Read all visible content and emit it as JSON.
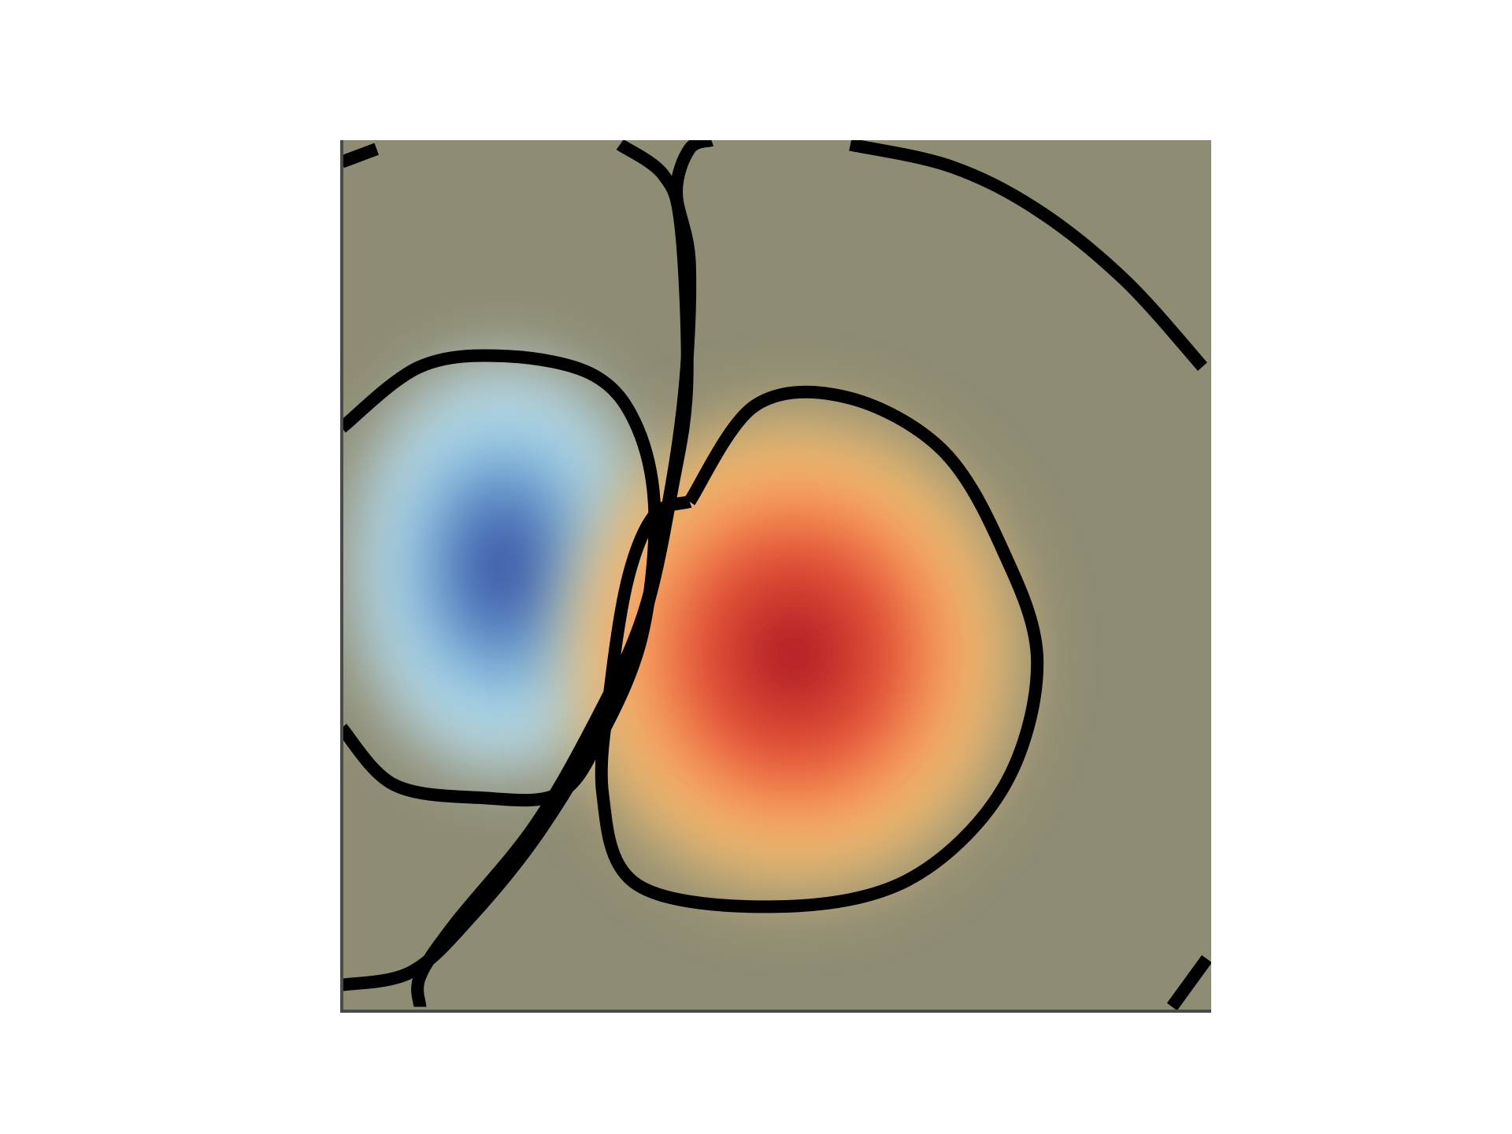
{
  "chart_data": {
    "type": "heatmap",
    "title": "",
    "xlabel": "",
    "ylabel": "",
    "xlim": [
      0,
      1
    ],
    "ylim": [
      0,
      1
    ],
    "grid": false,
    "legend": "none",
    "colormap": "RdYlBu_r",
    "background_color": "#8e8c73",
    "frame_color": "#4a4a4a",
    "contour_color": "#000000",
    "extrema": [
      {
        "name": "negative-lobe",
        "x": 0.185,
        "y": 0.51,
        "value": -1.0,
        "color": "#3a4a9e"
      },
      {
        "name": "positive-lobe",
        "x": 0.52,
        "y": 0.41,
        "value": 1.0,
        "color": "#a8102a"
      }
    ],
    "contours": [
      {
        "name": "negative-lobe-boundary",
        "points": [
          [
            0.0,
            0.67
          ],
          [
            0.09,
            0.74
          ],
          [
            0.19,
            0.752
          ],
          [
            0.29,
            0.73
          ],
          [
            0.34,
            0.67
          ],
          [
            0.36,
            0.57
          ],
          [
            0.345,
            0.43
          ],
          [
            0.3,
            0.32
          ],
          [
            0.25,
            0.25
          ],
          [
            0.16,
            0.245
          ],
          [
            0.06,
            0.26
          ],
          [
            0.0,
            0.325
          ]
        ]
      },
      {
        "name": "positive-lobe-boundary",
        "points": [
          [
            0.4,
            0.585
          ],
          [
            0.475,
            0.695
          ],
          [
            0.58,
            0.705
          ],
          [
            0.69,
            0.645
          ],
          [
            0.76,
            0.53
          ],
          [
            0.8,
            0.4
          ],
          [
            0.76,
            0.255
          ],
          [
            0.65,
            0.15
          ],
          [
            0.5,
            0.12
          ],
          [
            0.34,
            0.145
          ],
          [
            0.3,
            0.25
          ],
          [
            0.31,
            0.38
          ],
          [
            0.33,
            0.5
          ],
          [
            0.36,
            0.57
          ],
          [
            0.4,
            0.585
          ]
        ]
      },
      {
        "name": "center-separatrix-upper",
        "points": [
          [
            0.425,
            1.0
          ],
          [
            0.4,
            0.99
          ],
          [
            0.385,
            0.94
          ],
          [
            0.4,
            0.86
          ],
          [
            0.395,
            0.72
          ],
          [
            0.375,
            0.58
          ],
          [
            0.345,
            0.45
          ],
          [
            0.29,
            0.33
          ],
          [
            0.22,
            0.21
          ],
          [
            0.13,
            0.1
          ],
          [
            0.09,
            0.04
          ],
          [
            0.09,
            0.005
          ]
        ]
      },
      {
        "name": "center-separatrix-lower",
        "points": [
          [
            0.32,
            0.995
          ],
          [
            0.37,
            0.96
          ],
          [
            0.39,
            0.9
          ],
          [
            0.397,
            0.72
          ],
          [
            0.38,
            0.6
          ],
          [
            0.35,
            0.46
          ],
          [
            0.3,
            0.33
          ],
          [
            0.23,
            0.21
          ],
          [
            0.15,
            0.11
          ],
          [
            0.08,
            0.045
          ],
          [
            0.0,
            0.03
          ]
        ]
      },
      {
        "name": "upper-left-fragment",
        "points": [
          [
            0.0,
            0.975
          ],
          [
            0.04,
            0.99
          ]
        ]
      },
      {
        "name": "outer-arc-upper-right",
        "points": [
          [
            0.585,
            0.995
          ],
          [
            0.7,
            0.97
          ],
          [
            0.8,
            0.92
          ],
          [
            0.9,
            0.84
          ],
          [
            0.99,
            0.74
          ]
        ]
      },
      {
        "name": "outer-arc-lower-right",
        "points": [
          [
            0.955,
            0.005
          ],
          [
            0.995,
            0.06
          ]
        ]
      }
    ]
  }
}
